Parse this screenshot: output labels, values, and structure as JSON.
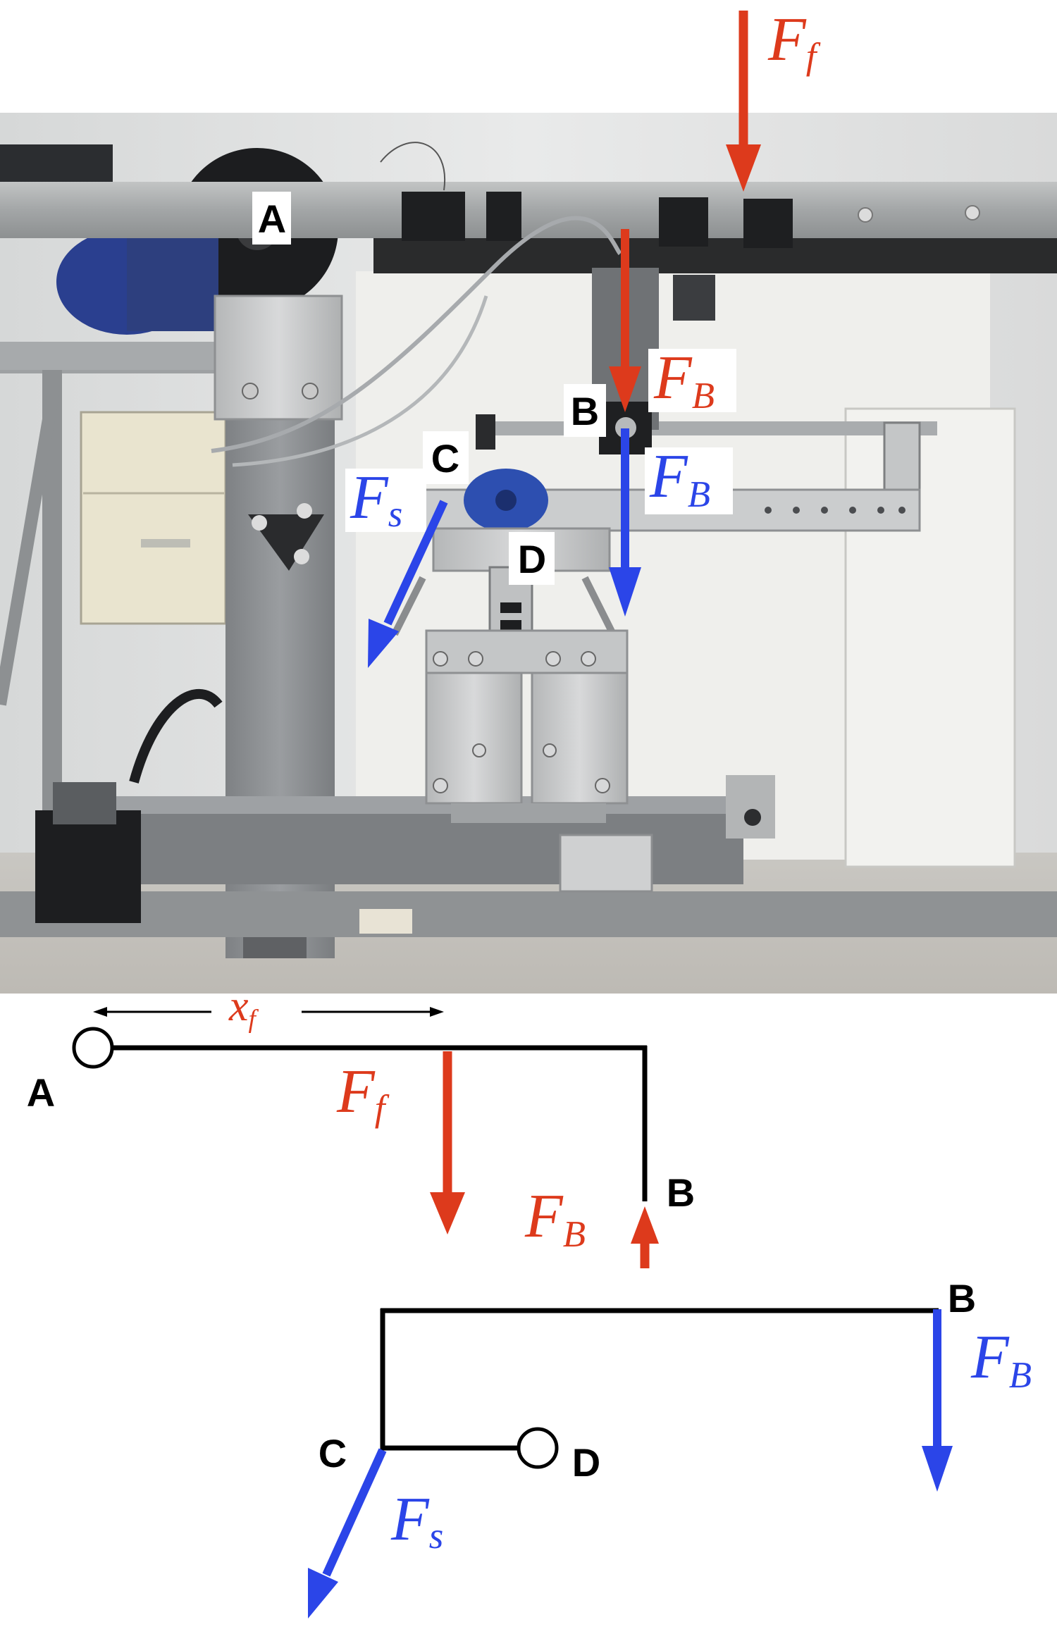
{
  "colors": {
    "red": "#dd3a1c",
    "blue": "#2b45e8",
    "black": "#000000",
    "label_box": "#ffffff"
  },
  "points": {
    "A": "A",
    "B": "B",
    "C": "C",
    "D": "D"
  },
  "photo": {
    "labels": {
      "A": "A",
      "B": "B",
      "C": "C",
      "D": "D"
    },
    "forces": {
      "Ff": {
        "main": "F",
        "sub": "f"
      },
      "FB_red": {
        "main": "F",
        "sub": "B"
      },
      "FB_blue": {
        "main": "F",
        "sub": "B"
      },
      "Fs": {
        "main": "F",
        "sub": "s"
      }
    }
  },
  "fbd_upper": {
    "dimension": {
      "main": "x",
      "sub": "f"
    },
    "labels": {
      "A": "A",
      "B": "B"
    },
    "forces": {
      "Ff": {
        "main": "F",
        "sub": "f"
      },
      "FB": {
        "main": "F",
        "sub": "B"
      }
    }
  },
  "fbd_lower": {
    "labels": {
      "B": "B",
      "C": "C",
      "D": "D"
    },
    "forces": {
      "FB": {
        "main": "F",
        "sub": "B"
      },
      "Fs": {
        "main": "F",
        "sub": "s"
      }
    }
  }
}
